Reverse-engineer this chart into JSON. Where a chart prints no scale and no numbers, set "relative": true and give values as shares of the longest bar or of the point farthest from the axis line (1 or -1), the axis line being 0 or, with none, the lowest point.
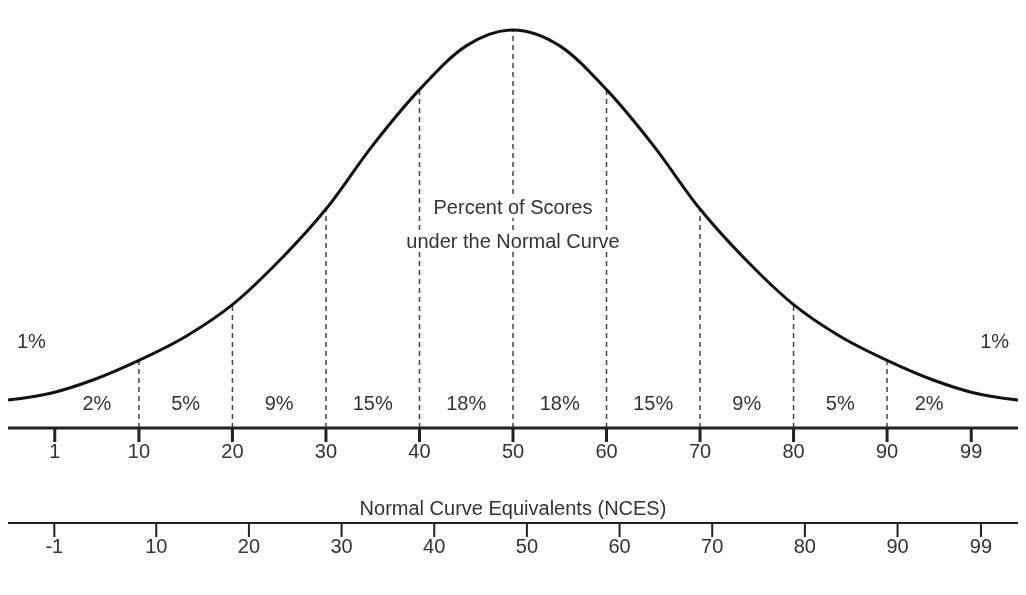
{
  "chart_data": {
    "type": "line",
    "relative": true,
    "xlabel": "Normal Curve Equivalents (NCES)",
    "x": [
      -4,
      1,
      5,
      10,
      15,
      20,
      25,
      30,
      35,
      40,
      45,
      50,
      55,
      60,
      65,
      70,
      75,
      80,
      85,
      90,
      95,
      99,
      104
    ],
    "series": [
      {
        "color": "#111111",
        "values": [
          0.07,
          0.09,
          0.12,
          0.17,
          0.23,
          0.31,
          0.42,
          0.55,
          0.71,
          0.85,
          0.96,
          1,
          0.96,
          0.85,
          0.71,
          0.55,
          0.42,
          0.31,
          0.23,
          0.17,
          0.12,
          0.09,
          0.07
        ]
      }
    ],
    "xlim": [
      -4,
      104
    ],
    "xticks": [
      1,
      10,
      20,
      30,
      40,
      50,
      60,
      70,
      80,
      90,
      99
    ],
    "x2lim": [
      -6,
      103
    ],
    "x2ticks": [
      -1,
      10,
      20,
      30,
      40,
      50,
      60,
      70,
      80,
      90,
      99
    ],
    "ref_lines": [
      {
        "axis": "x",
        "value": 10,
        "line_style": "dashed",
        "color": "#444444"
      },
      {
        "axis": "x",
        "value": 20,
        "line_style": "dashed",
        "color": "#444444"
      },
      {
        "axis": "x",
        "value": 30,
        "line_style": "dashed",
        "color": "#444444"
      },
      {
        "axis": "x",
        "value": 40,
        "line_style": "dashed",
        "color": "#444444"
      },
      {
        "axis": "x",
        "value": 50,
        "line_style": "dashed",
        "color": "#444444"
      },
      {
        "axis": "x",
        "value": 60,
        "line_style": "dashed",
        "color": "#444444"
      },
      {
        "axis": "x",
        "value": 70,
        "line_style": "dashed",
        "color": "#444444"
      },
      {
        "axis": "x",
        "value": 80,
        "line_style": "dashed",
        "color": "#444444"
      },
      {
        "axis": "x",
        "value": 90,
        "line_style": "dashed",
        "color": "#444444"
      }
    ],
    "annotations": [
      "Percent of Scores\nunder the Normal Curve",
      "1%",
      "2%",
      "5%",
      "9%",
      "15%",
      "18%",
      "18%",
      "15%",
      "9%",
      "5%",
      "2%",
      "1%"
    ]
  }
}
